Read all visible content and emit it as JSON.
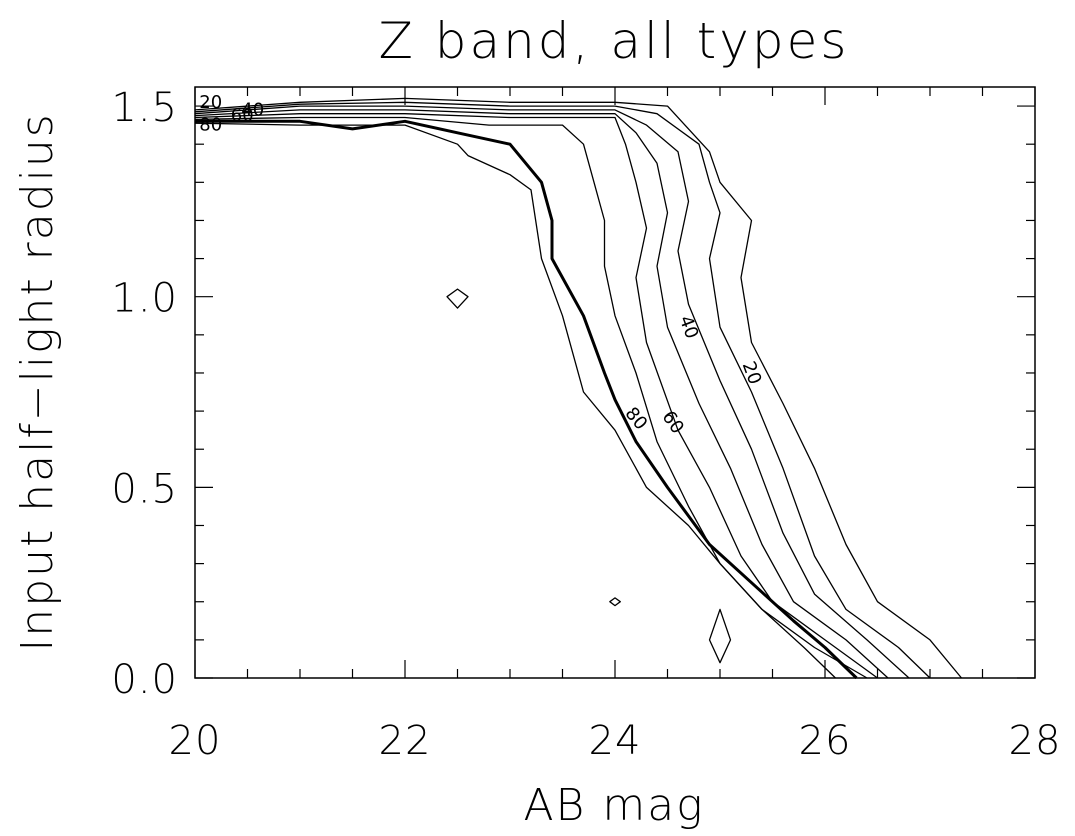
{
  "chart_data": {
    "type": "contour",
    "title": "Z band, all types",
    "xlabel": "AB mag",
    "ylabel": "Input half−light radius",
    "xlim": [
      20,
      28
    ],
    "ylim": [
      0.0,
      1.55
    ],
    "x_ticks": [
      20,
      22,
      24,
      26,
      28
    ],
    "x_tick_labels": [
      "20",
      "22",
      "24",
      "26",
      "28"
    ],
    "y_ticks": [
      0.0,
      0.5,
      1.0,
      1.5
    ],
    "y_tick_labels": [
      "0.0",
      "0.5",
      "1.0",
      "1.5"
    ],
    "grid": false,
    "contour_levels": [
      {
        "level": 20,
        "label": "20",
        "emphasis": false,
        "points": [
          [
            20,
            1.49
          ],
          [
            21,
            1.51
          ],
          [
            22,
            1.52
          ],
          [
            23,
            1.51
          ],
          [
            24,
            1.51
          ],
          [
            24.5,
            1.5
          ],
          [
            24.9,
            1.38
          ],
          [
            25.0,
            1.3
          ],
          [
            25.3,
            1.2
          ],
          [
            25.2,
            1.05
          ],
          [
            25.3,
            0.88
          ],
          [
            25.6,
            0.72
          ],
          [
            25.9,
            0.55
          ],
          [
            26.2,
            0.35
          ],
          [
            26.5,
            0.2
          ],
          [
            27.0,
            0.1
          ],
          [
            27.3,
            0.0
          ]
        ]
      },
      {
        "level": 30,
        "label": "",
        "emphasis": false,
        "points": [
          [
            20,
            1.485
          ],
          [
            21,
            1.505
          ],
          [
            22,
            1.51
          ],
          [
            23,
            1.5
          ],
          [
            24,
            1.5
          ],
          [
            24.4,
            1.48
          ],
          [
            24.8,
            1.4
          ],
          [
            24.9,
            1.3
          ],
          [
            25.0,
            1.22
          ],
          [
            24.9,
            1.1
          ],
          [
            25.0,
            0.92
          ],
          [
            25.3,
            0.75
          ],
          [
            25.6,
            0.55
          ],
          [
            25.9,
            0.32
          ],
          [
            26.2,
            0.18
          ],
          [
            26.7,
            0.08
          ],
          [
            27.0,
            0.0
          ]
        ]
      },
      {
        "level": 40,
        "label": "40",
        "emphasis": false,
        "points": [
          [
            20,
            1.48
          ],
          [
            21,
            1.5
          ],
          [
            22,
            1.5
          ],
          [
            23,
            1.49
          ],
          [
            24,
            1.49
          ],
          [
            24.3,
            1.45
          ],
          [
            24.6,
            1.38
          ],
          [
            24.7,
            1.25
          ],
          [
            24.6,
            1.12
          ],
          [
            24.7,
            0.98
          ],
          [
            25.0,
            0.78
          ],
          [
            25.3,
            0.6
          ],
          [
            25.6,
            0.38
          ],
          [
            25.9,
            0.22
          ],
          [
            26.4,
            0.1
          ],
          [
            26.8,
            0.0
          ]
        ]
      },
      {
        "level": 50,
        "label": "",
        "emphasis": false,
        "points": [
          [
            20,
            1.475
          ],
          [
            21,
            1.49
          ],
          [
            22,
            1.49
          ],
          [
            23,
            1.48
          ],
          [
            24,
            1.48
          ],
          [
            24.2,
            1.43
          ],
          [
            24.4,
            1.35
          ],
          [
            24.5,
            1.22
          ],
          [
            24.4,
            1.08
          ],
          [
            24.5,
            0.92
          ],
          [
            24.8,
            0.72
          ],
          [
            25.1,
            0.55
          ],
          [
            25.4,
            0.35
          ],
          [
            25.7,
            0.2
          ],
          [
            26.2,
            0.1
          ],
          [
            26.6,
            0.0
          ]
        ]
      },
      {
        "level": 60,
        "label": "60",
        "emphasis": false,
        "points": [
          [
            20,
            1.47
          ],
          [
            21,
            1.48
          ],
          [
            22,
            1.48
          ],
          [
            23,
            1.47
          ],
          [
            24,
            1.47
          ],
          [
            24.1,
            1.4
          ],
          [
            24.2,
            1.3
          ],
          [
            24.3,
            1.18
          ],
          [
            24.2,
            1.05
          ],
          [
            24.3,
            0.88
          ],
          [
            24.6,
            0.65
          ],
          [
            24.9,
            0.5
          ],
          [
            25.2,
            0.32
          ],
          [
            25.5,
            0.2
          ],
          [
            26.0,
            0.1
          ],
          [
            26.5,
            0.0
          ]
        ]
      },
      {
        "level": 70,
        "label": "",
        "emphasis": false,
        "points": [
          [
            20,
            1.465
          ],
          [
            21,
            1.47
          ],
          [
            22,
            1.47
          ],
          [
            22.8,
            1.45
          ],
          [
            23.5,
            1.45
          ],
          [
            23.7,
            1.4
          ],
          [
            23.8,
            1.3
          ],
          [
            23.9,
            1.2
          ],
          [
            23.9,
            1.08
          ],
          [
            24.0,
            0.95
          ],
          [
            24.2,
            0.8
          ],
          [
            24.4,
            0.62
          ],
          [
            24.7,
            0.45
          ],
          [
            25.0,
            0.3
          ],
          [
            25.4,
            0.18
          ],
          [
            25.9,
            0.08
          ],
          [
            26.4,
            0.0
          ]
        ]
      },
      {
        "level": 80,
        "label": "80",
        "emphasis": true,
        "points": [
          [
            20,
            1.46
          ],
          [
            21,
            1.46
          ],
          [
            21.5,
            1.44
          ],
          [
            22,
            1.46
          ],
          [
            22.5,
            1.43
          ],
          [
            23,
            1.4
          ],
          [
            23.3,
            1.3
          ],
          [
            23.4,
            1.2
          ],
          [
            23.4,
            1.1
          ],
          [
            23.7,
            0.95
          ],
          [
            23.9,
            0.8
          ],
          [
            24.0,
            0.73
          ],
          [
            24.2,
            0.62
          ],
          [
            24.5,
            0.5
          ],
          [
            24.9,
            0.35
          ],
          [
            25.3,
            0.25
          ],
          [
            25.7,
            0.15
          ],
          [
            26.0,
            0.08
          ],
          [
            26.3,
            0.0
          ]
        ]
      },
      {
        "level": 90,
        "label": "",
        "emphasis": false,
        "points": [
          [
            20,
            1.455
          ],
          [
            21,
            1.45
          ],
          [
            22,
            1.45
          ],
          [
            22.5,
            1.4
          ],
          [
            22.6,
            1.37
          ],
          [
            23,
            1.32
          ],
          [
            23.2,
            1.28
          ],
          [
            23.3,
            1.1
          ],
          [
            23.5,
            0.95
          ],
          [
            23.6,
            0.85
          ],
          [
            23.7,
            0.75
          ],
          [
            24.0,
            0.65
          ],
          [
            24.3,
            0.5
          ],
          [
            24.7,
            0.4
          ],
          [
            25.0,
            0.3
          ],
          [
            25.4,
            0.18
          ],
          [
            25.8,
            0.08
          ],
          [
            26.1,
            0.0
          ]
        ]
      }
    ],
    "islands": [
      {
        "points": [
          [
            22.4,
            1.0
          ],
          [
            22.5,
            1.02
          ],
          [
            22.6,
            1.0
          ],
          [
            22.5,
            0.97
          ],
          [
            22.4,
            1.0
          ]
        ]
      },
      {
        "points": [
          [
            23.95,
            0.2
          ],
          [
            24.0,
            0.21
          ],
          [
            24.05,
            0.2
          ],
          [
            24.0,
            0.19
          ],
          [
            23.95,
            0.2
          ]
        ]
      },
      {
        "points": [
          [
            24.9,
            0.1
          ],
          [
            25.0,
            0.18
          ],
          [
            25.1,
            0.1
          ],
          [
            25.0,
            0.04
          ],
          [
            24.9,
            0.1
          ]
        ]
      }
    ],
    "upper_left_labels": [
      {
        "text": "20",
        "x": 20.15,
        "y": 1.51
      },
      {
        "text": "40",
        "x": 20.55,
        "y": 1.49
      },
      {
        "text": "60",
        "x": 20.45,
        "y": 1.475
      },
      {
        "text": "80",
        "x": 20.15,
        "y": 1.45
      }
    ],
    "inline_labels": [
      {
        "text": "40",
        "x": 24.7,
        "y": 0.92,
        "rotate": 70
      },
      {
        "text": "20",
        "x": 25.3,
        "y": 0.8,
        "rotate": 70
      },
      {
        "text": "60",
        "x": 24.55,
        "y": 0.67,
        "rotate": 55
      },
      {
        "text": "80",
        "x": 24.2,
        "y": 0.68,
        "rotate": 50
      }
    ]
  }
}
